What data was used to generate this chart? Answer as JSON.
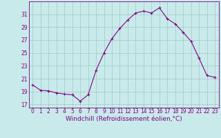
{
  "x": [
    0,
    1,
    2,
    3,
    4,
    5,
    6,
    7,
    8,
    9,
    10,
    11,
    12,
    13,
    14,
    15,
    16,
    17,
    18,
    19,
    20,
    21,
    22,
    23
  ],
  "y": [
    20.0,
    19.2,
    19.1,
    18.8,
    18.6,
    18.5,
    17.5,
    18.5,
    22.3,
    25.0,
    27.2,
    28.8,
    30.1,
    31.2,
    31.5,
    31.2,
    32.0,
    30.3,
    29.5,
    28.2,
    26.8,
    24.2,
    21.5,
    21.2
  ],
  "line_color": "#800080",
  "marker": "+",
  "background_color": "#c8eaea",
  "grid_color": "#9ec8c8",
  "text_color": "#800080",
  "xlabel": "Windchill (Refroidissement éolien,°C)",
  "ylabel": "",
  "xlim": [
    -0.5,
    23.5
  ],
  "ylim": [
    16.5,
    33.0
  ],
  "yticks": [
    17,
    19,
    21,
    23,
    25,
    27,
    29,
    31
  ],
  "xticks": [
    0,
    1,
    2,
    3,
    4,
    5,
    6,
    7,
    8,
    9,
    10,
    11,
    12,
    13,
    14,
    15,
    16,
    17,
    18,
    19,
    20,
    21,
    22,
    23
  ],
  "tick_fontsize": 5.5,
  "label_fontsize": 6.5
}
